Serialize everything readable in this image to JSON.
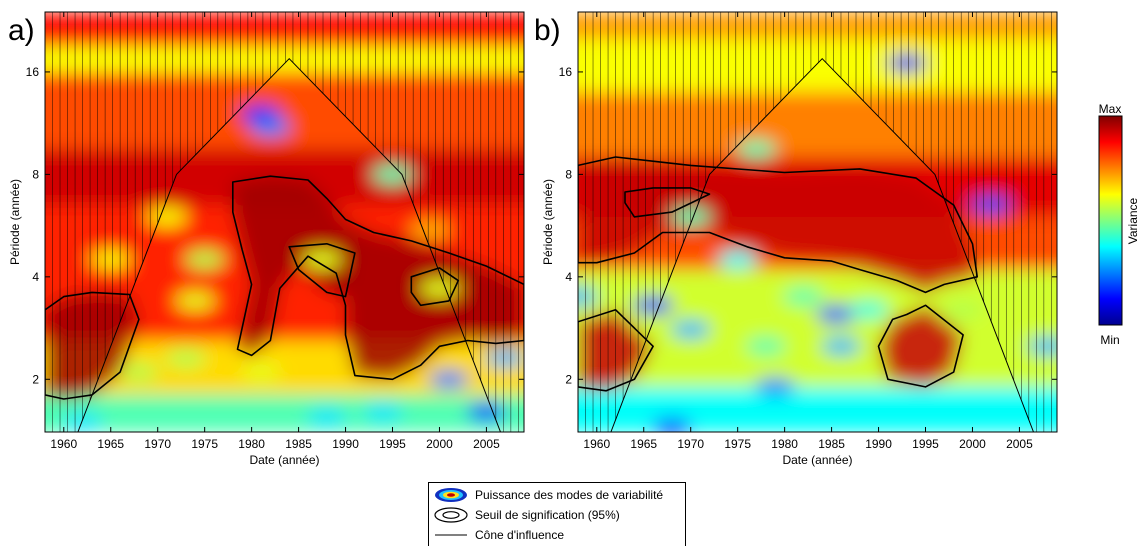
{
  "chart_data": [
    {
      "type": "heatmap",
      "panel_label": "a)",
      "xlabel": "Date (année)",
      "ylabel": "Période (année)",
      "xlim": [
        1958,
        2009
      ],
      "ylim": [
        1.4,
        24
      ],
      "y_scale": "log2",
      "xticks": [
        1960,
        1965,
        1970,
        1975,
        1980,
        1985,
        1990,
        1995,
        2000,
        2005
      ],
      "yticks": [
        2,
        4,
        8,
        16
      ],
      "cone_of_influence": [
        [
          1961.5,
          1.4
        ],
        [
          1972,
          8
        ],
        [
          1984,
          17.5
        ],
        [
          1996,
          8
        ],
        [
          2006.5,
          1.4
        ]
      ],
      "significance_contours": [
        [
          [
            1958,
            3.2
          ],
          [
            1960,
            3.5
          ],
          [
            1963,
            3.6
          ],
          [
            1967,
            3.55
          ],
          [
            1968,
            3
          ],
          [
            1966,
            2.1
          ],
          [
            1963,
            1.8
          ],
          [
            1960,
            1.75
          ],
          [
            1958,
            1.8
          ]
        ],
        [
          [
            1978,
            7.6
          ],
          [
            1982,
            7.9
          ],
          [
            1986,
            7.7
          ],
          [
            1988,
            6.8
          ],
          [
            1990,
            5.9
          ],
          [
            1993,
            5.4
          ],
          [
            1997,
            5.1
          ],
          [
            2001,
            4.7
          ],
          [
            2005,
            4.3
          ],
          [
            2009,
            3.8
          ],
          [
            2009,
            2.6
          ],
          [
            2006,
            2.55
          ],
          [
            2003,
            2.6
          ],
          [
            2000,
            2.5
          ],
          [
            1998,
            2.2
          ],
          [
            1995,
            2
          ],
          [
            1991,
            2.05
          ],
          [
            1990,
            2.7
          ],
          [
            1990,
            3.3
          ],
          [
            1989,
            4.1
          ],
          [
            1986,
            4.6
          ],
          [
            1983,
            3.7
          ],
          [
            1982,
            2.6
          ],
          [
            1980,
            2.35
          ],
          [
            1978.5,
            2.45
          ],
          [
            1980,
            3.8
          ],
          [
            1979,
            4.8
          ],
          [
            1978,
            6.2
          ]
        ],
        [
          [
            1984,
            4.9
          ],
          [
            1988,
            5.0
          ],
          [
            1991,
            4.7
          ],
          [
            1990,
            3.5
          ],
          [
            1988,
            3.6
          ],
          [
            1985,
            4.2
          ]
        ],
        [
          [
            1997,
            4.0
          ],
          [
            2000,
            4.25
          ],
          [
            2002,
            3.9
          ],
          [
            2001,
            3.4
          ],
          [
            1998,
            3.3
          ],
          [
            1997,
            3.6
          ]
        ]
      ],
      "hotspots": [
        {
          "x": 1981,
          "y": 12,
          "level": 0.15
        },
        {
          "x": 1995,
          "y": 8,
          "level": 0.45
        },
        {
          "x": 1971,
          "y": 6,
          "level": 0.62
        },
        {
          "x": 1965,
          "y": 4.5,
          "level": 0.62
        },
        {
          "x": 1975,
          "y": 4.5,
          "level": 0.55
        },
        {
          "x": 1987.5,
          "y": 4.5,
          "level": 0.6
        },
        {
          "x": 2000,
          "y": 3.7,
          "level": 0.6
        },
        {
          "x": 1999,
          "y": 5.5,
          "level": 0.7
        },
        {
          "x": 1974,
          "y": 3.4,
          "level": 0.6
        },
        {
          "x": 1982,
          "y": 11,
          "level": 0.25
        },
        {
          "x": 1968,
          "y": 2.1,
          "level": 0.55
        },
        {
          "x": 1973,
          "y": 2.3,
          "level": 0.55
        },
        {
          "x": 1981,
          "y": 2.1,
          "level": 0.6
        },
        {
          "x": 2001,
          "y": 2.0,
          "level": 0.25
        },
        {
          "x": 2005,
          "y": 1.6,
          "level": 0.15
        },
        {
          "x": 1962,
          "y": 1.5,
          "level": 0.35
        },
        {
          "x": 1988,
          "y": 1.55,
          "level": 0.35
        },
        {
          "x": 1994,
          "y": 1.6,
          "level": 0.35
        },
        {
          "x": 2007,
          "y": 2.3,
          "level": 0.3
        }
      ]
    },
    {
      "type": "heatmap",
      "panel_label": "b)",
      "xlabel": "Date (année)",
      "ylabel": "Période (année)",
      "xlim": [
        1958,
        2009
      ],
      "ylim": [
        1.4,
        24
      ],
      "y_scale": "log2",
      "xticks": [
        1960,
        1965,
        1970,
        1975,
        1980,
        1985,
        1990,
        1995,
        2000,
        2005
      ],
      "yticks": [
        2,
        4,
        8,
        16
      ],
      "cone_of_influence": [
        [
          1961.5,
          1.4
        ],
        [
          1972,
          8
        ],
        [
          1984,
          17.5
        ],
        [
          1996,
          8
        ],
        [
          2006.5,
          1.4
        ]
      ],
      "significance_contours": [
        [
          [
            1958,
            8.5
          ],
          [
            1962,
            9.0
          ],
          [
            1970,
            8.5
          ],
          [
            1980,
            8.1
          ],
          [
            1988,
            8.3
          ],
          [
            1994,
            7.8
          ],
          [
            1998,
            6.5
          ],
          [
            2000,
            5.0
          ],
          [
            2000.5,
            4.0
          ],
          [
            1997,
            3.8
          ],
          [
            1995,
            3.6
          ],
          [
            1992,
            3.9
          ],
          [
            1988,
            4.2
          ],
          [
            1985,
            4.45
          ],
          [
            1980,
            4.55
          ],
          [
            1976,
            4.9
          ],
          [
            1972,
            5.4
          ],
          [
            1967,
            5.4
          ],
          [
            1964,
            4.7
          ],
          [
            1960,
            4.4
          ],
          [
            1958,
            4.4
          ]
        ],
        [
          [
            1963,
            7.1
          ],
          [
            1966,
            7.3
          ],
          [
            1970,
            7.3
          ],
          [
            1972,
            7.0
          ],
          [
            1968,
            6.2
          ],
          [
            1964,
            6.0
          ],
          [
            1963,
            6.6
          ]
        ],
        [
          [
            1958,
            2.95
          ],
          [
            1962,
            3.2
          ],
          [
            1966,
            2.5
          ],
          [
            1964,
            2.0
          ],
          [
            1961,
            1.85
          ],
          [
            1958,
            1.9
          ]
        ],
        [
          [
            1993,
            3.1
          ],
          [
            1995,
            3.3
          ],
          [
            1999,
            2.7
          ],
          [
            1998,
            2.1
          ],
          [
            1995,
            1.9
          ],
          [
            1991,
            2.0
          ],
          [
            1990,
            2.5
          ],
          [
            1991.5,
            3.0
          ]
        ]
      ],
      "hotspots": [
        {
          "x": 1993,
          "y": 17,
          "level": 0.12
        },
        {
          "x": 1977,
          "y": 9.5,
          "level": 0.45
        },
        {
          "x": 1970,
          "y": 6,
          "level": 0.45
        },
        {
          "x": 2002,
          "y": 6.5,
          "level": 0.2
        },
        {
          "x": 1966,
          "y": 3.3,
          "level": 0.15
        },
        {
          "x": 1970,
          "y": 2.8,
          "level": 0.3
        },
        {
          "x": 1975,
          "y": 4.5,
          "level": 0.38
        },
        {
          "x": 1985.5,
          "y": 3.1,
          "level": 0.2
        },
        {
          "x": 1986,
          "y": 2.5,
          "level": 0.3
        },
        {
          "x": 1989,
          "y": 3.2,
          "level": 0.4
        },
        {
          "x": 1999,
          "y": 3.2,
          "level": 0.55
        },
        {
          "x": 1979,
          "y": 1.9,
          "level": 0.25
        },
        {
          "x": 1968,
          "y": 1.45,
          "level": 0.2
        },
        {
          "x": 1982,
          "y": 3.5,
          "level": 0.45
        },
        {
          "x": 1978,
          "y": 2.5,
          "level": 0.45
        },
        {
          "x": 1958,
          "y": 3.5,
          "level": 0.3
        },
        {
          "x": 2008,
          "y": 2.5,
          "level": 0.3
        }
      ]
    }
  ],
  "colorbar": {
    "title": "Variance",
    "max_label": "Max",
    "min_label": "Min",
    "colormap": "jet"
  },
  "legend": {
    "items": [
      "Puissance des modes de variabilité",
      "Seuil de signification (95%)",
      "Cône d'influence"
    ]
  }
}
